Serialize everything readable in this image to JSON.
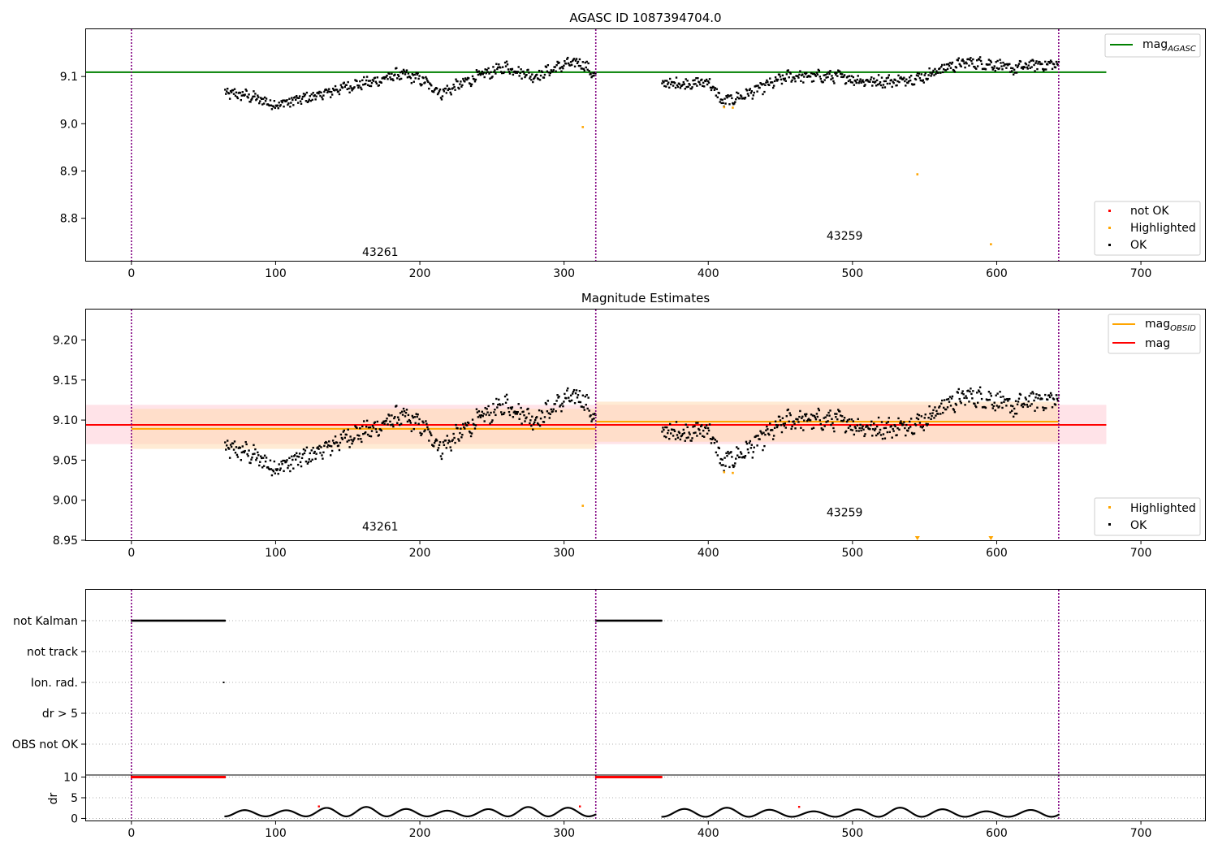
{
  "chart_data": [
    {
      "type": "scatter",
      "title": "AGASC ID 1087394704.0",
      "xlim": [
        -32,
        745
      ],
      "ylim": [
        8.71,
        9.2
      ],
      "xticks": [
        0,
        100,
        200,
        300,
        400,
        500,
        600,
        700
      ],
      "yticks": [
        8.8,
        8.9,
        9.0,
        9.1
      ],
      "ytick_labels": [
        "8.8",
        "8.9",
        "9.0",
        "9.1"
      ],
      "obsid_boundaries": [
        0,
        322,
        643
      ],
      "obsid_labels": [
        {
          "text": "43261",
          "x": 160,
          "y": 8.72
        },
        {
          "text": "43259",
          "x": 482,
          "y": 8.755
        }
      ],
      "reference_lines": [
        {
          "name": "mag_AGASC",
          "y": 9.109,
          "x_range": [
            -32,
            676
          ],
          "color": "#008000"
        }
      ],
      "ok_segments": [
        {
          "x_start": 65,
          "x_end": 322,
          "anchors": [
            [
              65,
              9.065
            ],
            [
              80,
              9.06
            ],
            [
              100,
              9.04
            ],
            [
              130,
              9.06
            ],
            [
              150,
              9.08
            ],
            [
              170,
              9.09
            ],
            [
              185,
              9.105
            ],
            [
              200,
              9.095
            ],
            [
              215,
              9.065
            ],
            [
              240,
              9.1
            ],
            [
              260,
              9.12
            ],
            [
              280,
              9.1
            ],
            [
              300,
              9.125
            ],
            [
              312,
              9.13
            ],
            [
              322,
              9.1
            ]
          ]
        },
        {
          "x_start": 368,
          "x_end": 643,
          "anchors": [
            [
              368,
              9.085
            ],
            [
              390,
              9.085
            ],
            [
              400,
              9.09
            ],
            [
              410,
              9.045
            ],
            [
              425,
              9.06
            ],
            [
              440,
              9.08
            ],
            [
              455,
              9.1
            ],
            [
              470,
              9.1
            ],
            [
              490,
              9.1
            ],
            [
              510,
              9.09
            ],
            [
              530,
              9.09
            ],
            [
              550,
              9.1
            ],
            [
              565,
              9.12
            ],
            [
              580,
              9.13
            ],
            [
              600,
              9.125
            ],
            [
              610,
              9.115
            ],
            [
              625,
              9.125
            ],
            [
              643,
              9.125
            ]
          ]
        }
      ],
      "highlighted": [
        [
          313,
          8.993
        ],
        [
          411,
          9.035
        ],
        [
          417,
          9.034
        ],
        [
          545,
          8.893
        ],
        [
          596,
          8.745
        ]
      ],
      "not_ok": [],
      "legend_upper": [
        {
          "label": "mag",
          "subscript": "AGASC",
          "color": "#008000"
        }
      ],
      "legend_lower": [
        {
          "label": "not OK",
          "color": "#ff0000"
        },
        {
          "label": "Highlighted",
          "color": "#ffa500"
        },
        {
          "label": "OK",
          "color": "#000000"
        }
      ],
      "colors": {
        "ok": "#000000",
        "highlighted": "#ffa500",
        "not_ok": "#ff0000",
        "obsid_line": "#800080"
      }
    },
    {
      "type": "scatter",
      "title": "Magnitude Estimates",
      "xlim": [
        -32,
        745
      ],
      "ylim": [
        8.95,
        9.238
      ],
      "xticks": [
        0,
        100,
        200,
        300,
        400,
        500,
        600,
        700
      ],
      "yticks": [
        8.95,
        9.0,
        9.05,
        9.1,
        9.15,
        9.2
      ],
      "ytick_labels": [
        "8.95",
        "9.00",
        "9.05",
        "9.10",
        "9.15",
        "9.20"
      ],
      "obsid_boundaries": [
        0,
        322,
        643
      ],
      "obsid_labels": [
        {
          "text": "43261",
          "x": 160,
          "y": 8.962
        },
        {
          "text": "43259",
          "x": 482,
          "y": 8.98
        }
      ],
      "mag_line": {
        "y": 9.094,
        "x_range": [
          -32,
          676
        ],
        "band": [
          9.07,
          9.119
        ],
        "color": "#ff0000"
      },
      "obsid_mags": [
        {
          "x_range": [
            0,
            322
          ],
          "y": 9.089,
          "band": [
            9.064,
            9.114
          ]
        },
        {
          "x_range": [
            322,
            643
          ],
          "y": 9.098,
          "band": [
            9.073,
            9.123
          ]
        }
      ],
      "ok_segments": [
        {
          "x_start": 65,
          "x_end": 322,
          "anchors": [
            [
              65,
              9.065
            ],
            [
              80,
              9.06
            ],
            [
              100,
              9.04
            ],
            [
              130,
              9.06
            ],
            [
              150,
              9.08
            ],
            [
              170,
              9.09
            ],
            [
              185,
              9.105
            ],
            [
              200,
              9.095
            ],
            [
              215,
              9.065
            ],
            [
              240,
              9.1
            ],
            [
              260,
              9.12
            ],
            [
              280,
              9.1
            ],
            [
              300,
              9.125
            ],
            [
              312,
              9.13
            ],
            [
              322,
              9.1
            ]
          ]
        },
        {
          "x_start": 368,
          "x_end": 643,
          "anchors": [
            [
              368,
              9.085
            ],
            [
              390,
              9.085
            ],
            [
              400,
              9.09
            ],
            [
              410,
              9.045
            ],
            [
              425,
              9.06
            ],
            [
              440,
              9.08
            ],
            [
              455,
              9.1
            ],
            [
              470,
              9.1
            ],
            [
              490,
              9.1
            ],
            [
              510,
              9.09
            ],
            [
              530,
              9.09
            ],
            [
              550,
              9.1
            ],
            [
              565,
              9.12
            ],
            [
              580,
              9.13
            ],
            [
              600,
              9.125
            ],
            [
              610,
              9.115
            ],
            [
              625,
              9.125
            ],
            [
              643,
              9.125
            ]
          ]
        }
      ],
      "highlighted": [
        [
          313,
          8.993
        ],
        [
          411,
          9.035
        ],
        [
          417,
          9.034
        ]
      ],
      "offscale_highlighted_x": [
        545,
        596
      ],
      "legend_upper": [
        {
          "label": "mag",
          "subscript": "OBSID",
          "color": "#ffa500"
        },
        {
          "label": "mag",
          "subscript": "",
          "color": "#ff0000"
        }
      ],
      "legend_lower": [
        {
          "label": "Highlighted",
          "color": "#ffa500"
        },
        {
          "label": "OK",
          "color": "#000000"
        }
      ],
      "colors": {
        "ok": "#000000",
        "highlighted": "#ffa500",
        "mag": "#ff0000",
        "mag_obsid": "#ffa500",
        "mag_band": "#ffc0cb",
        "obsid_band": "#ffdab0",
        "obsid_line": "#800080"
      }
    },
    {
      "type": "scatter",
      "title": "",
      "xlim": [
        -32,
        745
      ],
      "xticks": [
        0,
        100,
        200,
        300,
        400,
        500,
        600,
        700
      ],
      "obsid_boundaries": [
        0,
        322,
        643
      ],
      "flag_rows": [
        "not Kalman",
        "not track",
        "Ion. rad.",
        "dr > 5",
        "OBS not OK"
      ],
      "flag_points": [
        {
          "row": "not Kalman",
          "x_ranges": [
            [
              0,
              65
            ],
            [
              322,
              368
            ]
          ]
        },
        {
          "row": "Ion. rad.",
          "x": [
            64
          ]
        }
      ],
      "dr": {
        "ylabel": "dr",
        "ylim": [
          -0.5,
          10.5
        ],
        "yticks": [
          0,
          5,
          10
        ],
        "saturated": [
          {
            "x_range": [
              0,
              65
            ],
            "value": 10
          },
          {
            "x_range": [
              322,
              368
            ],
            "value": 10
          }
        ],
        "wave_segments": [
          {
            "x_start": 65,
            "x_end": 322,
            "min": 0.5,
            "max": 2.8,
            "period": 28
          },
          {
            "x_start": 368,
            "x_end": 643,
            "min": 0.4,
            "max": 2.6,
            "period": 30
          }
        ],
        "red_points": [
          [
            130,
            2.9
          ],
          [
            311,
            2.9
          ],
          [
            463,
            2.8
          ]
        ]
      },
      "colors": {
        "flag": "#000000",
        "saturated": "#ff0000",
        "dr": "#000000",
        "red": "#ff0000",
        "obsid_line": "#800080",
        "grid": "#b0b0b0"
      }
    }
  ]
}
